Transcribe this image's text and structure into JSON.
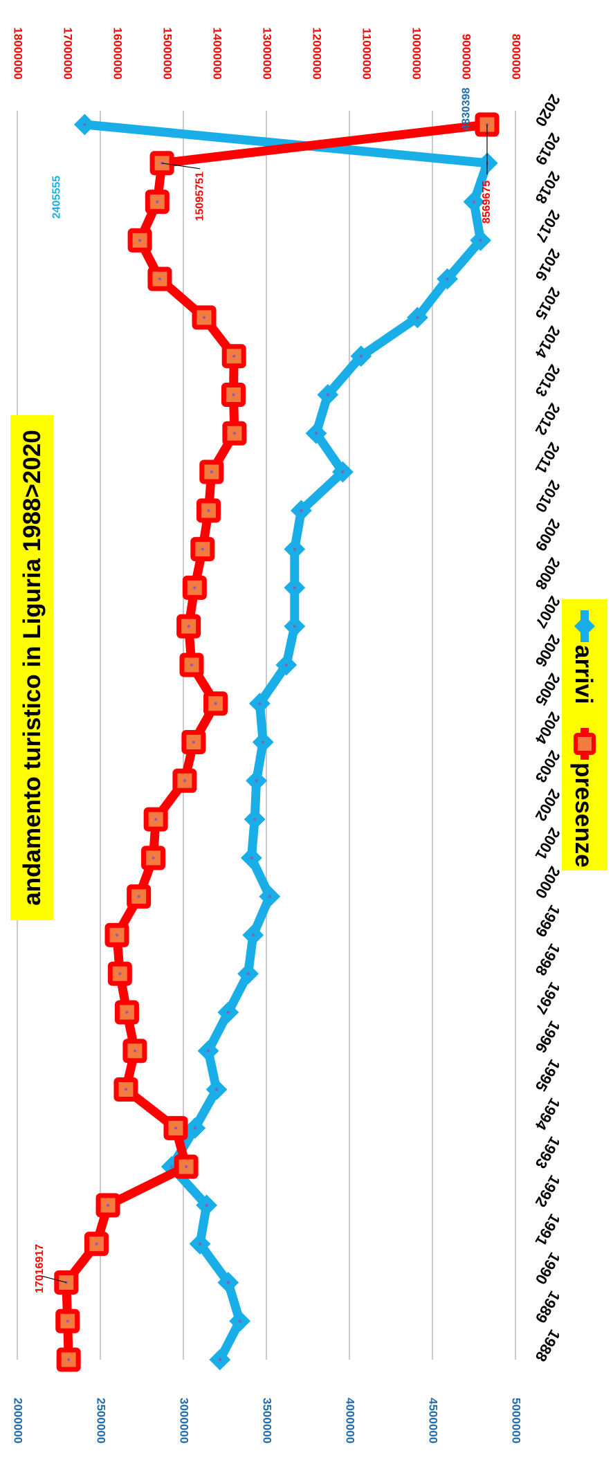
{
  "chart_data": {
    "type": "line",
    "title": "andamento turistico in Liguria 1988>2020",
    "categories": [
      "1988",
      "1989",
      "1990",
      "1991",
      "1992",
      "1993",
      "1994",
      "1995",
      "1996",
      "1997",
      "1998",
      "1999",
      "2000",
      "2001",
      "2002",
      "2003",
      "2004",
      "2005",
      "2006",
      "2007",
      "2008",
      "2009",
      "2010",
      "2011",
      "2012",
      "2013",
      "2014",
      "2015",
      "2016",
      "2017",
      "2018",
      "2019",
      "2020"
    ],
    "series": [
      {
        "name": "arrivi",
        "axis": "primary",
        "color": "#1aaee8",
        "marker": "diamond",
        "values": [
          3220000,
          3340000,
          3270000,
          3100000,
          3140000,
          2930000,
          3070000,
          3200000,
          3150000,
          3270000,
          3390000,
          3420000,
          3520000,
          3410000,
          3430000,
          3440000,
          3480000,
          3460000,
          3620000,
          3670000,
          3670000,
          3670000,
          3710000,
          3960000,
          3800000,
          3870000,
          4070000,
          4410000,
          4590000,
          4790000,
          4750000,
          4830398,
          2405555
        ]
      },
      {
        "name": "presenze",
        "axis": "secondary",
        "color": "#ff0000",
        "marker": "square",
        "values": [
          16970000,
          16990000,
          17016917,
          16410000,
          16180000,
          14610000,
          14820000,
          15820000,
          15640000,
          15800000,
          15940000,
          16000000,
          15560000,
          15270000,
          15220000,
          14640000,
          14460000,
          14020000,
          14500000,
          14560000,
          14440000,
          14280000,
          14160000,
          14100000,
          13640000,
          13660000,
          13650000,
          14250000,
          15140000,
          15540000,
          15190000,
          15095751,
          8569675
        ]
      }
    ],
    "y_primary": {
      "min": 2000000,
      "max": 5000000,
      "ticks": [
        "2000000",
        "2500000",
        "3000000",
        "3500000",
        "4000000",
        "4500000",
        "5000000"
      ],
      "color": "#1f6bab"
    },
    "y_secondary": {
      "min": 8000000,
      "max": 18000000,
      "ticks": [
        "8000000",
        "9000000",
        "10000000",
        "11000000",
        "12000000",
        "13000000",
        "14000000",
        "15000000",
        "16000000",
        "17000000",
        "18000000"
      ],
      "color": "#ff0000"
    },
    "annotations": [
      {
        "series": "presenze",
        "category": "1990",
        "text": "17016917",
        "color": "#ff0000"
      },
      {
        "series": "arrivi",
        "category": "2019",
        "text": "4830398",
        "color": "#1f6bab"
      },
      {
        "series": "presenze",
        "category": "2019",
        "text": "15095751",
        "color": "#ff0000"
      },
      {
        "series": "arrivi",
        "category": "2020",
        "text": "2405555",
        "color": "#1aaee8"
      },
      {
        "series": "presenze",
        "category": "2020",
        "text": "8569675",
        "color": "#ff0000"
      }
    ],
    "grid": true,
    "legend_position": "bottom",
    "orientation": "rotated-90-clockwise",
    "title_bg": "#ffff00",
    "legend_bg": "#ffff00"
  }
}
